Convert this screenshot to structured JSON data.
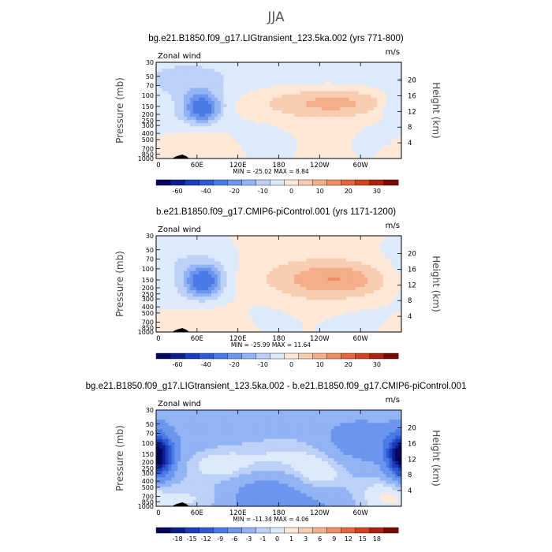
{
  "figure": {
    "title": "JJA",
    "variable_label": "Zonal wind",
    "units": "m/s",
    "y_left_label": "Pressure (mb)",
    "y_right_label": "Height (km)",
    "x_ticks": [
      "0",
      "60E",
      "120E",
      "180",
      "120W",
      "60W"
    ],
    "x_tick_values": [
      0,
      60,
      120,
      180,
      240,
      300
    ],
    "pressure_ticks": [
      "30",
      "50",
      "70",
      "100",
      "150",
      "200",
      "250",
      "300",
      "400",
      "500",
      "700",
      "850",
      "1000"
    ],
    "pressure_tick_values": [
      30,
      50,
      70,
      100,
      150,
      200,
      250,
      300,
      400,
      500,
      700,
      850,
      1000
    ],
    "height_ticks": [
      "20",
      "16",
      "12",
      "8",
      "4"
    ],
    "height_tick_values": [
      20,
      16,
      12,
      8,
      4
    ]
  },
  "chart_data": [
    {
      "type": "heatmap",
      "title": "bg.e21.B1850.f09_g17.LIGtransient_123.5ka.002 (yrs 771-800)",
      "stats_text": "MIN = -25.02   MAX =   8.84",
      "min": -25.02,
      "max": 8.84,
      "xlim": [
        0,
        360
      ],
      "ylim_pressure": [
        1000,
        30
      ],
      "colorbar_labels": [
        "-60",
        "-40",
        "-20",
        "-10",
        "0",
        "10",
        "20",
        "30"
      ],
      "colorbar_levels": [
        -70,
        -60,
        -50,
        -40,
        -30,
        -20,
        -15,
        -10,
        -5,
        0,
        5,
        10,
        15,
        20,
        25,
        30,
        35
      ],
      "colorbar_colors": [
        "#06065f",
        "#0b1d8c",
        "#1c3bbf",
        "#2f5ad6",
        "#4a7ae6",
        "#6c96ee",
        "#92b3f4",
        "#bcd0f8",
        "#ddeafc",
        "#fde8d7",
        "#f8ccb0",
        "#f4ae8a",
        "#ee8c63",
        "#e3673e",
        "#cf4322",
        "#ab2211",
        "#7a0a06"
      ],
      "base_level": 0
    },
    {
      "type": "heatmap",
      "title": "b.e21.B1850.f09_g17.CMIP6-piControl.001 (yrs 1171-1200)",
      "stats_text": "MIN = -25.99   MAX =  11.64",
      "min": -25.99,
      "max": 11.64,
      "xlim": [
        0,
        360
      ],
      "ylim_pressure": [
        1000,
        30
      ],
      "colorbar_labels": [
        "-60",
        "-40",
        "-20",
        "-10",
        "0",
        "10",
        "20",
        "30"
      ],
      "colorbar_levels": [
        -70,
        -60,
        -50,
        -40,
        -30,
        -20,
        -15,
        -10,
        -5,
        0,
        5,
        10,
        15,
        20,
        25,
        30,
        35
      ],
      "colorbar_colors": [
        "#06065f",
        "#0b1d8c",
        "#1c3bbf",
        "#2f5ad6",
        "#4a7ae6",
        "#6c96ee",
        "#92b3f4",
        "#bcd0f8",
        "#ddeafc",
        "#fde8d7",
        "#f8ccb0",
        "#f4ae8a",
        "#ee8c63",
        "#e3673e",
        "#cf4322",
        "#ab2211",
        "#7a0a06"
      ],
      "base_level": 0
    },
    {
      "type": "heatmap",
      "title": "bg.e21.B1850.f09_g17.LIGtransient_123.5ka.002 - b.e21.B1850.f09_g17.CMIP6-piControl.001",
      "stats_text": "MIN = -11.34   MAX =   4.06",
      "min": -11.34,
      "max": 4.06,
      "xlim": [
        0,
        360
      ],
      "ylim_pressure": [
        1000,
        30
      ],
      "colorbar_labels": [
        "-18",
        "-15",
        "-12",
        "-9",
        "-6",
        "-3",
        "-1",
        "0",
        "1",
        "3",
        "6",
        "9",
        "12",
        "15",
        "18"
      ],
      "colorbar_levels": [
        -21,
        -18,
        -15,
        -12,
        -9,
        -6,
        -3,
        -1,
        0,
        1,
        3,
        6,
        9,
        12,
        15,
        18,
        21
      ],
      "colorbar_colors": [
        "#06065f",
        "#0b1d8c",
        "#1c3bbf",
        "#2f5ad6",
        "#4a7ae6",
        "#6c96ee",
        "#92b3f4",
        "#bcd0f8",
        "#ddeafc",
        "#fde8d7",
        "#f8ccb0",
        "#f4ae8a",
        "#ee8c63",
        "#e3673e",
        "#cf4322",
        "#ab2211",
        "#7a0a06"
      ],
      "base_level": 1
    }
  ]
}
